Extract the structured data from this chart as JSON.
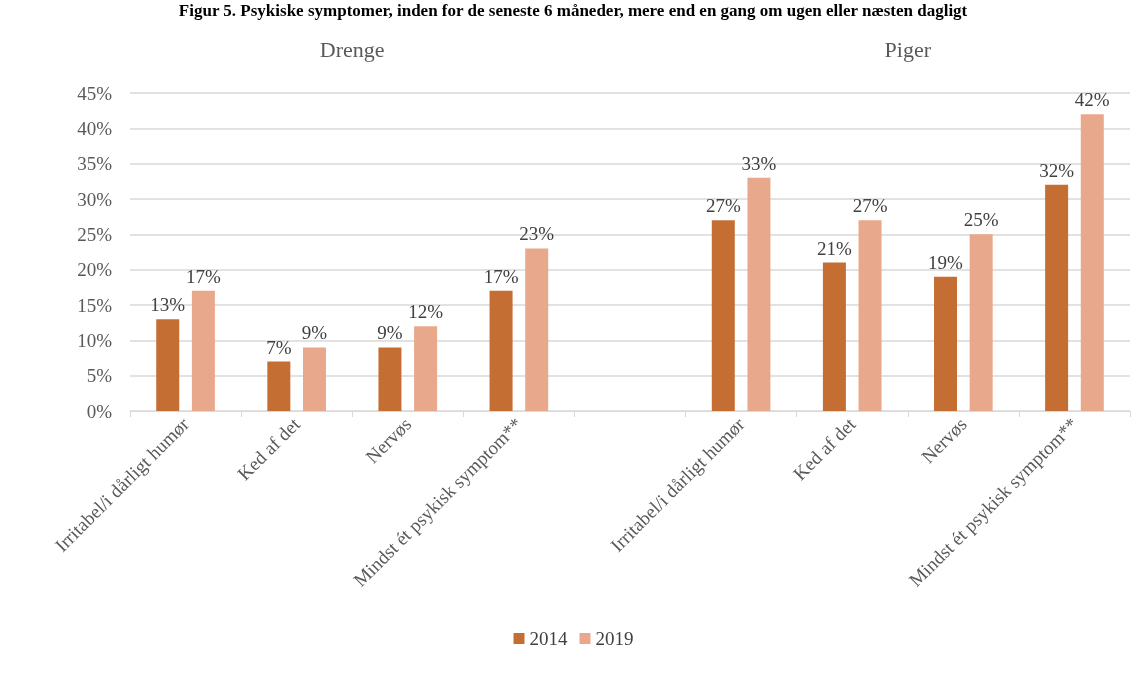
{
  "chart_data": {
    "type": "bar",
    "title": "Figur 5. Psykiske symptomer, inden for de seneste 6 måneder, mere end en gang om ugen eller næsten dagligt",
    "annotations": [
      "Drenge",
      "Piger"
    ],
    "categories": [
      "Irritabel/i dårligt humør",
      "Ked af det",
      "Nervøs",
      "Mindst ét psykisk symptom**",
      null,
      "Irritabel/i dårligt humør",
      "Ked af det",
      "Nervøs",
      "Mindst ét psykisk symptom**"
    ],
    "series": [
      {
        "name": "2014",
        "color": "#c46e34",
        "values": [
          13,
          7,
          9,
          17,
          null,
          27,
          21,
          19,
          32
        ],
        "value_labels": [
          "13%",
          "7%",
          "9%",
          "17%",
          null,
          "27%",
          "21%",
          "19%",
          "32%"
        ]
      },
      {
        "name": "2019",
        "color": "#e8a88b",
        "values": [
          17,
          9,
          12,
          23,
          null,
          33,
          27,
          25,
          42
        ],
        "value_labels": [
          "17%",
          "9%",
          "12%",
          "23%",
          null,
          "33%",
          "27%",
          "25%",
          "42%"
        ]
      }
    ],
    "ylim": [
      0,
      45
    ],
    "yticks": [
      {
        "value": 0,
        "label": "0%"
      },
      {
        "value": 5,
        "label": "5%"
      },
      {
        "value": 10,
        "label": "10%"
      },
      {
        "value": 15,
        "label": "15%"
      },
      {
        "value": 20,
        "label": "20%"
      },
      {
        "value": 25,
        "label": "25%"
      },
      {
        "value": 30,
        "label": "30%"
      },
      {
        "value": 35,
        "label": "35%"
      },
      {
        "value": 40,
        "label": "40%"
      },
      {
        "value": 45,
        "label": "45%"
      }
    ],
    "grid": "y",
    "legend": "bottom"
  }
}
